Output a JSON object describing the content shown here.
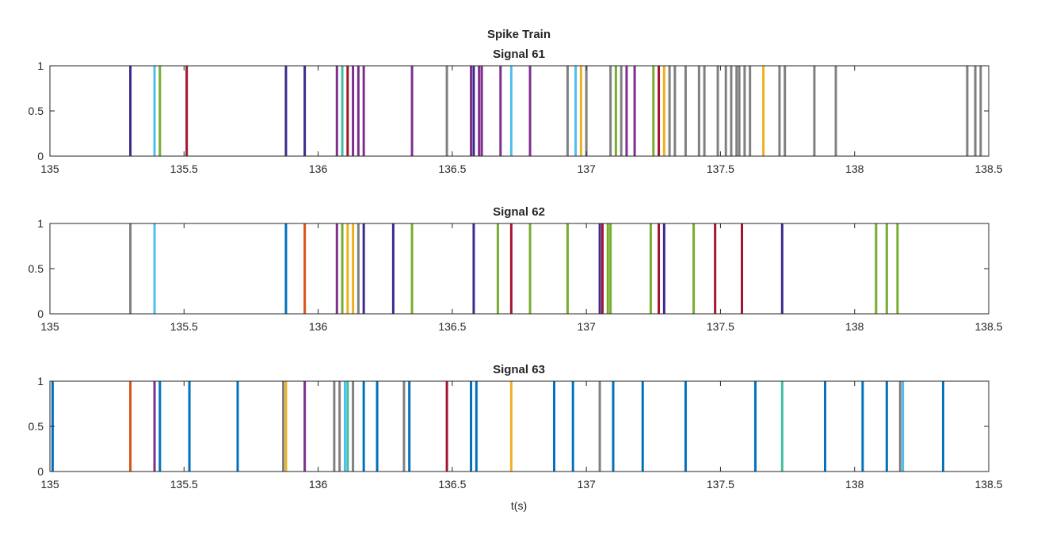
{
  "chart_data": {
    "type": "spike-train",
    "title": "Spike Train",
    "xlabel": "t(s)",
    "xlim": [
      135,
      138.5
    ],
    "ylim": [
      0,
      1
    ],
    "xticks": [
      135,
      135.5,
      136,
      136.5,
      137,
      137.5,
      138,
      138.5
    ],
    "xtick_labels": [
      "135",
      "135.5",
      "136",
      "136.5",
      "137",
      "137.5",
      "138",
      "138.5"
    ],
    "yticks": [
      0,
      0.5,
      1
    ],
    "ytick_labels": [
      "0",
      "0.5",
      "1"
    ],
    "colors": {
      "blue": "#0072bd",
      "orange": "#d95319",
      "yellow": "#edb120",
      "purple": "#7e2f8e",
      "green": "#77ac30",
      "cyan": "#4dbeee",
      "red": "#a2142f",
      "gray": "#808080",
      "teal": "#3fbfa0",
      "navy": "#3d2a8f"
    },
    "panels": [
      {
        "title": "Signal 61",
        "spikes": [
          {
            "t": 135.3,
            "c": "navy"
          },
          {
            "t": 135.39,
            "c": "cyan"
          },
          {
            "t": 135.41,
            "c": "green"
          },
          {
            "t": 135.51,
            "c": "red"
          },
          {
            "t": 135.88,
            "c": "navy"
          },
          {
            "t": 135.95,
            "c": "navy"
          },
          {
            "t": 136.07,
            "c": "purple"
          },
          {
            "t": 136.09,
            "c": "teal"
          },
          {
            "t": 136.11,
            "c": "red"
          },
          {
            "t": 136.13,
            "c": "purple"
          },
          {
            "t": 136.15,
            "c": "purple"
          },
          {
            "t": 136.17,
            "c": "purple"
          },
          {
            "t": 136.35,
            "c": "purple"
          },
          {
            "t": 136.48,
            "c": "gray"
          },
          {
            "t": 136.57,
            "c": "purple"
          },
          {
            "t": 136.58,
            "c": "navy"
          },
          {
            "t": 136.6,
            "c": "purple"
          },
          {
            "t": 136.61,
            "c": "purple"
          },
          {
            "t": 136.68,
            "c": "purple"
          },
          {
            "t": 136.72,
            "c": "cyan"
          },
          {
            "t": 136.79,
            "c": "purple"
          },
          {
            "t": 136.93,
            "c": "gray"
          },
          {
            "t": 136.96,
            "c": "cyan"
          },
          {
            "t": 136.98,
            "c": "yellow"
          },
          {
            "t": 137.0,
            "c": "gray"
          },
          {
            "t": 137.09,
            "c": "gray"
          },
          {
            "t": 137.11,
            "c": "green"
          },
          {
            "t": 137.13,
            "c": "gray"
          },
          {
            "t": 137.15,
            "c": "purple"
          },
          {
            "t": 137.18,
            "c": "purple"
          },
          {
            "t": 137.25,
            "c": "green"
          },
          {
            "t": 137.27,
            "c": "red"
          },
          {
            "t": 137.29,
            "c": "yellow"
          },
          {
            "t": 137.31,
            "c": "gray"
          },
          {
            "t": 137.33,
            "c": "gray"
          },
          {
            "t": 137.37,
            "c": "gray"
          },
          {
            "t": 137.42,
            "c": "gray"
          },
          {
            "t": 137.44,
            "c": "gray"
          },
          {
            "t": 137.49,
            "c": "gray"
          },
          {
            "t": 137.52,
            "c": "gray"
          },
          {
            "t": 137.54,
            "c": "gray"
          },
          {
            "t": 137.56,
            "c": "gray"
          },
          {
            "t": 137.57,
            "c": "gray"
          },
          {
            "t": 137.59,
            "c": "gray"
          },
          {
            "t": 137.61,
            "c": "gray"
          },
          {
            "t": 137.66,
            "c": "yellow"
          },
          {
            "t": 137.72,
            "c": "gray"
          },
          {
            "t": 137.74,
            "c": "gray"
          },
          {
            "t": 137.85,
            "c": "gray"
          },
          {
            "t": 137.93,
            "c": "gray"
          },
          {
            "t": 138.42,
            "c": "gray"
          },
          {
            "t": 138.45,
            "c": "gray"
          },
          {
            "t": 138.47,
            "c": "gray"
          }
        ]
      },
      {
        "title": "Signal 62",
        "spikes": [
          {
            "t": 135.3,
            "c": "gray"
          },
          {
            "t": 135.39,
            "c": "cyan"
          },
          {
            "t": 135.88,
            "c": "blue"
          },
          {
            "t": 135.95,
            "c": "orange"
          },
          {
            "t": 136.07,
            "c": "purple"
          },
          {
            "t": 136.09,
            "c": "green"
          },
          {
            "t": 136.11,
            "c": "yellow"
          },
          {
            "t": 136.13,
            "c": "yellow"
          },
          {
            "t": 136.15,
            "c": "gray"
          },
          {
            "t": 136.17,
            "c": "navy"
          },
          {
            "t": 136.28,
            "c": "navy"
          },
          {
            "t": 136.35,
            "c": "green"
          },
          {
            "t": 136.58,
            "c": "navy"
          },
          {
            "t": 136.67,
            "c": "green"
          },
          {
            "t": 136.72,
            "c": "red"
          },
          {
            "t": 136.79,
            "c": "green"
          },
          {
            "t": 136.93,
            "c": "green"
          },
          {
            "t": 137.05,
            "c": "navy"
          },
          {
            "t": 137.06,
            "c": "red"
          },
          {
            "t": 137.08,
            "c": "green"
          },
          {
            "t": 137.09,
            "c": "green"
          },
          {
            "t": 137.24,
            "c": "green"
          },
          {
            "t": 137.27,
            "c": "red"
          },
          {
            "t": 137.29,
            "c": "navy"
          },
          {
            "t": 137.4,
            "c": "green"
          },
          {
            "t": 137.48,
            "c": "red"
          },
          {
            "t": 137.58,
            "c": "red"
          },
          {
            "t": 137.73,
            "c": "navy"
          },
          {
            "t": 138.08,
            "c": "green"
          },
          {
            "t": 138.12,
            "c": "green"
          },
          {
            "t": 138.16,
            "c": "green"
          }
        ]
      },
      {
        "title": "Signal 63",
        "spikes": [
          {
            "t": 135.01,
            "c": "blue"
          },
          {
            "t": 135.3,
            "c": "orange"
          },
          {
            "t": 135.39,
            "c": "purple"
          },
          {
            "t": 135.41,
            "c": "blue"
          },
          {
            "t": 135.52,
            "c": "blue"
          },
          {
            "t": 135.7,
            "c": "blue"
          },
          {
            "t": 135.87,
            "c": "gray"
          },
          {
            "t": 135.88,
            "c": "yellow"
          },
          {
            "t": 135.95,
            "c": "purple"
          },
          {
            "t": 136.06,
            "c": "gray"
          },
          {
            "t": 136.08,
            "c": "gray"
          },
          {
            "t": 136.1,
            "c": "cyan"
          },
          {
            "t": 136.11,
            "c": "teal"
          },
          {
            "t": 136.13,
            "c": "gray"
          },
          {
            "t": 136.17,
            "c": "blue"
          },
          {
            "t": 136.22,
            "c": "blue"
          },
          {
            "t": 136.32,
            "c": "gray"
          },
          {
            "t": 136.34,
            "c": "blue"
          },
          {
            "t": 136.48,
            "c": "red"
          },
          {
            "t": 136.57,
            "c": "blue"
          },
          {
            "t": 136.59,
            "c": "blue"
          },
          {
            "t": 136.72,
            "c": "yellow"
          },
          {
            "t": 136.88,
            "c": "blue"
          },
          {
            "t": 136.95,
            "c": "blue"
          },
          {
            "t": 137.05,
            "c": "gray"
          },
          {
            "t": 137.1,
            "c": "blue"
          },
          {
            "t": 137.21,
            "c": "blue"
          },
          {
            "t": 137.37,
            "c": "blue"
          },
          {
            "t": 137.63,
            "c": "blue"
          },
          {
            "t": 137.73,
            "c": "teal"
          },
          {
            "t": 137.89,
            "c": "blue"
          },
          {
            "t": 138.03,
            "c": "blue"
          },
          {
            "t": 138.12,
            "c": "blue"
          },
          {
            "t": 138.17,
            "c": "gray"
          },
          {
            "t": 138.18,
            "c": "cyan"
          },
          {
            "t": 138.33,
            "c": "blue"
          }
        ]
      }
    ]
  }
}
